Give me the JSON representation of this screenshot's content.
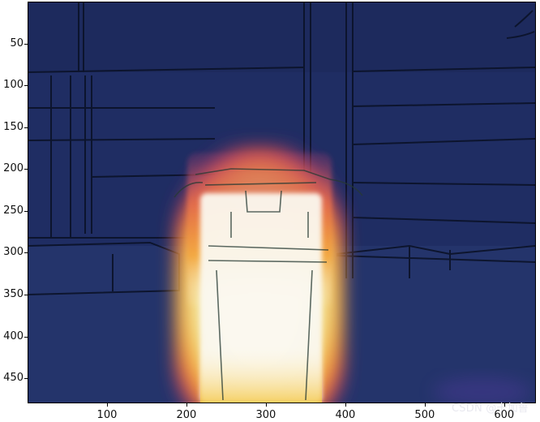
{
  "image": {
    "description_icon": "heatmap-overlay-icon",
    "x_ticks": [
      "100",
      "200",
      "300",
      "400",
      "500",
      "600"
    ],
    "y_ticks": [
      "50",
      "100",
      "150",
      "200",
      "250",
      "300",
      "350",
      "400",
      "450"
    ],
    "x_tick_values": [
      100,
      200,
      300,
      400,
      500,
      600
    ],
    "y_tick_values": [
      50,
      100,
      150,
      200,
      250,
      300,
      350,
      400,
      450
    ],
    "x_range": [
      0,
      640
    ],
    "y_range": [
      0,
      480
    ],
    "watermark": "CSDN @卡加鲁"
  },
  "colors": {
    "background": "#1f2d63",
    "hot": "#ffffff",
    "warm": "#f3a33a",
    "mid": "#d9494a",
    "cool": "#6a2c8b"
  }
}
